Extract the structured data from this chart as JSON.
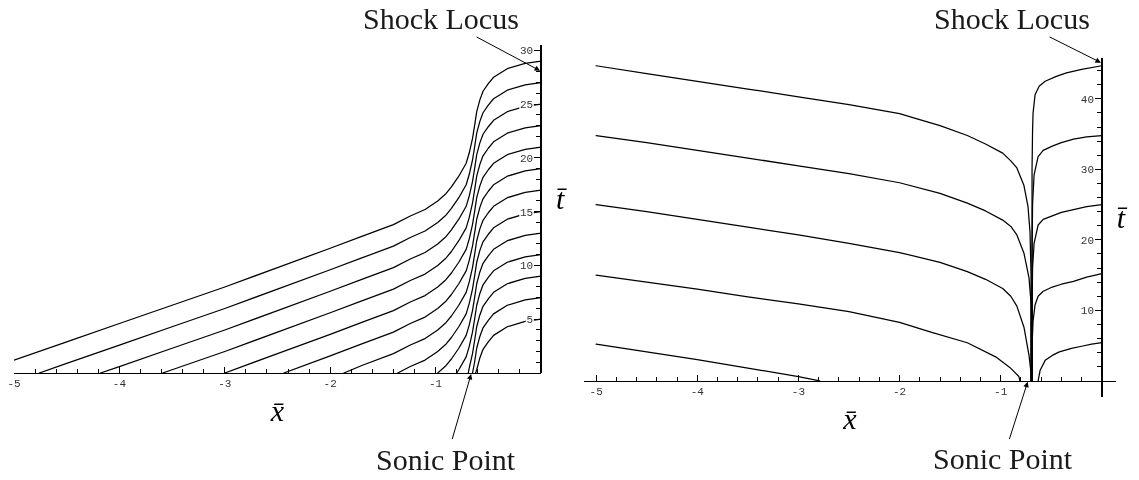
{
  "chart_data": [
    {
      "type": "line",
      "xlabel": "x̄",
      "ylabel": "t̄",
      "xlim": [
        -5,
        0
      ],
      "ylim": [
        0,
        30.5
      ],
      "xticks": [
        -5,
        {
          "value": -4.8,
          "label": null
        },
        {
          "value": -4.6,
          "label": null
        },
        {
          "value": -4.4,
          "label": null
        },
        {
          "value": -4.2,
          "label": null
        },
        -4,
        {
          "value": -3.8,
          "label": null
        },
        {
          "value": -3.6,
          "label": null
        },
        {
          "value": -3.4,
          "label": null
        },
        {
          "value": -3.2,
          "label": null
        },
        -3,
        {
          "value": -2.8,
          "label": null
        },
        {
          "value": -2.6,
          "label": null
        },
        {
          "value": -2.4,
          "label": null
        },
        {
          "value": -2.2,
          "label": null
        },
        -2,
        {
          "value": -1.8,
          "label": null
        },
        {
          "value": -1.6,
          "label": null
        },
        {
          "value": -1.4,
          "label": null
        },
        {
          "value": -1.2,
          "label": null
        },
        -1,
        {
          "value": -0.8,
          "label": null
        },
        {
          "value": -0.6,
          "label": null
        },
        {
          "value": -0.4,
          "label": null
        },
        {
          "value": -0.2,
          "label": null
        }
      ],
      "yticks": [
        {
          "value": 1,
          "label": null
        },
        {
          "value": 2,
          "label": null
        },
        {
          "value": 3,
          "label": null
        },
        {
          "value": 4,
          "label": null
        },
        5,
        {
          "value": 6,
          "label": null
        },
        {
          "value": 7,
          "label": null
        },
        {
          "value": 8,
          "label": null
        },
        {
          "value": 9,
          "label": null
        },
        10,
        {
          "value": 11,
          "label": null
        },
        {
          "value": 12,
          "label": null
        },
        {
          "value": 13,
          "label": null
        },
        {
          "value": 14,
          "label": null
        },
        15,
        {
          "value": 16,
          "label": null
        },
        {
          "value": 17,
          "label": null
        },
        {
          "value": 18,
          "label": null
        },
        {
          "value": 19,
          "label": null
        },
        20,
        {
          "value": 21,
          "label": null
        },
        {
          "value": 22,
          "label": null
        },
        {
          "value": 23,
          "label": null
        },
        {
          "value": 24,
          "label": null
        },
        25,
        {
          "value": 26,
          "label": null
        },
        {
          "value": 27,
          "label": null
        },
        {
          "value": 28,
          "label": null
        },
        {
          "value": 29,
          "label": null
        },
        30
      ],
      "series": [
        {
          "color": "#000000",
          "x": [
            -5,
            -4.5,
            -4,
            -3.5,
            -3,
            -2.5,
            -2,
            -1.7,
            -1.4,
            -1.24,
            -1.1,
            -0.98,
            -0.9,
            -0.85,
            -0.78,
            -0.71,
            -0.68,
            -0.65,
            -0.63,
            -0.61,
            -0.58,
            -0.55,
            -0.5,
            -0.45,
            -0.32,
            -0.15,
            0
          ],
          "values": [
            1.2,
            2.9,
            4.6,
            6.3,
            8.0,
            9.8,
            11.6,
            12.7,
            13.8,
            14.6,
            15.2,
            16.0,
            16.7,
            17.3,
            18.3,
            19.5,
            20.5,
            21.8,
            23.0,
            24.3,
            25.4,
            26.2,
            26.9,
            27.5,
            28.3,
            28.8,
            29.0
          ]
        },
        {
          "color": "#000000",
          "x": [
            -4.76,
            -4.5,
            -4,
            -3.5,
            -3,
            -2.5,
            -2,
            -1.7,
            -1.4,
            -1.24,
            -1.1,
            -0.98,
            -0.9,
            -0.85,
            -0.78,
            -0.71,
            -0.68,
            -0.65,
            -0.63,
            -0.61,
            -0.58,
            -0.55,
            -0.5,
            -0.45,
            -0.32,
            -0.15,
            0
          ],
          "values": [
            0,
            0.9,
            2.6,
            4.3,
            6.0,
            7.8,
            9.6,
            10.7,
            11.8,
            12.6,
            13.2,
            14.0,
            14.7,
            15.3,
            16.3,
            17.5,
            18.5,
            19.8,
            21.0,
            22.3,
            23.4,
            24.2,
            24.9,
            25.5,
            26.3,
            26.8,
            27.0
          ]
        },
        {
          "color": "#000000",
          "x": [
            -4.18,
            -4,
            -3.5,
            -3,
            -2.5,
            -2,
            -1.7,
            -1.4,
            -1.24,
            -1.1,
            -0.98,
            -0.9,
            -0.85,
            -0.78,
            -0.71,
            -0.68,
            -0.65,
            -0.63,
            -0.61,
            -0.58,
            -0.55,
            -0.5,
            -0.45,
            -0.32,
            -0.15,
            0
          ],
          "values": [
            0,
            0.6,
            2.3,
            4.0,
            5.8,
            7.6,
            8.7,
            9.8,
            10.6,
            11.2,
            12.0,
            12.7,
            13.3,
            14.3,
            15.5,
            16.5,
            17.8,
            19.0,
            20.3,
            21.4,
            22.2,
            22.9,
            23.5,
            24.3,
            24.8,
            25.0
          ]
        },
        {
          "color": "#000000",
          "x": [
            -3.59,
            -3.5,
            -3,
            -2.5,
            -2,
            -1.7,
            -1.4,
            -1.24,
            -1.1,
            -0.98,
            -0.9,
            -0.85,
            -0.78,
            -0.71,
            -0.68,
            -0.65,
            -0.63,
            -0.61,
            -0.58,
            -0.55,
            -0.5,
            -0.45,
            -0.32,
            -0.15,
            0
          ],
          "values": [
            0,
            0.3,
            2.0,
            3.8,
            5.6,
            6.7,
            7.8,
            8.6,
            9.2,
            10.0,
            10.7,
            11.3,
            12.3,
            13.5,
            14.5,
            15.8,
            17.0,
            18.3,
            19.4,
            20.2,
            20.9,
            21.5,
            22.3,
            22.8,
            23.0
          ]
        },
        {
          "color": "#000000",
          "x": [
            -3,
            -2.5,
            -2,
            -1.7,
            -1.4,
            -1.24,
            -1.1,
            -0.98,
            -0.9,
            -0.85,
            -0.78,
            -0.71,
            -0.68,
            -0.65,
            -0.63,
            -0.61,
            -0.58,
            -0.55,
            -0.5,
            -0.45,
            -0.32,
            -0.15,
            0
          ],
          "values": [
            0,
            1.8,
            3.6,
            4.7,
            5.8,
            6.6,
            7.2,
            8.0,
            8.7,
            9.3,
            10.3,
            11.5,
            12.5,
            13.8,
            15.0,
            16.3,
            17.4,
            18.2,
            18.9,
            19.5,
            20.3,
            20.8,
            21.0
          ]
        },
        {
          "color": "#000000",
          "x": [
            -2.44,
            -2,
            -1.7,
            -1.4,
            -1.24,
            -1.1,
            -0.98,
            -0.9,
            -0.85,
            -0.78,
            -0.71,
            -0.68,
            -0.65,
            -0.63,
            -0.61,
            -0.58,
            -0.55,
            -0.5,
            -0.45,
            -0.32,
            -0.15,
            0
          ],
          "values": [
            0,
            1.6,
            2.7,
            3.8,
            4.6,
            5.2,
            6.0,
            6.7,
            7.3,
            8.3,
            9.5,
            10.5,
            11.8,
            13.0,
            14.3,
            15.4,
            16.2,
            16.9,
            17.5,
            18.3,
            18.8,
            19.0
          ]
        },
        {
          "color": "#000000",
          "x": [
            -1.87,
            -1.7,
            -1.4,
            -1.24,
            -1.1,
            -0.98,
            -0.9,
            -0.85,
            -0.78,
            -0.71,
            -0.68,
            -0.65,
            -0.63,
            -0.61,
            -0.58,
            -0.55,
            -0.5,
            -0.45,
            -0.32,
            -0.15,
            0
          ],
          "values": [
            0,
            0.7,
            1.8,
            2.6,
            3.2,
            4.0,
            4.7,
            5.3,
            6.3,
            7.5,
            8.5,
            9.8,
            11.0,
            12.3,
            13.4,
            14.2,
            14.9,
            15.5,
            16.3,
            16.8,
            17.0
          ]
        },
        {
          "color": "#000000",
          "x": [
            -1.36,
            -1.24,
            -1.1,
            -0.98,
            -0.9,
            -0.85,
            -0.78,
            -0.71,
            -0.68,
            -0.65,
            -0.63,
            -0.61,
            -0.58,
            -0.55,
            -0.5,
            -0.45,
            -0.32,
            -0.15,
            0
          ],
          "values": [
            0,
            0.6,
            1.2,
            2.0,
            2.7,
            3.3,
            4.3,
            5.5,
            6.5,
            7.8,
            9.0,
            10.3,
            11.4,
            12.2,
            12.9,
            13.5,
            14.3,
            14.8,
            15.0
          ]
        },
        {
          "color": "#000000",
          "x": [
            -0.98,
            -0.9,
            -0.85,
            -0.78,
            -0.71,
            -0.68,
            -0.65,
            -0.63,
            -0.61,
            -0.58,
            -0.55,
            -0.5,
            -0.45,
            -0.32,
            -0.15,
            0
          ],
          "values": [
            0,
            0.7,
            1.3,
            2.3,
            3.5,
            4.5,
            5.8,
            7.0,
            8.3,
            9.4,
            10.2,
            10.9,
            11.5,
            12.3,
            12.8,
            13.0
          ]
        },
        {
          "color": "#000000",
          "x": [
            -0.8,
            -0.78,
            -0.71,
            -0.68,
            -0.65,
            -0.63,
            -0.61,
            -0.58,
            -0.55,
            -0.5,
            -0.45,
            -0.32,
            -0.15,
            0
          ],
          "values": [
            0,
            0.3,
            1.5,
            2.5,
            3.8,
            5.0,
            6.3,
            7.4,
            8.2,
            8.9,
            9.5,
            10.3,
            10.8,
            11.0
          ]
        },
        {
          "color": "#000000",
          "x": [
            -0.69,
            -0.68,
            -0.65,
            -0.63,
            -0.61,
            -0.58,
            -0.55,
            -0.5,
            -0.45,
            -0.32,
            -0.15,
            0
          ],
          "values": [
            0,
            0.5,
            1.8,
            3.0,
            4.3,
            5.4,
            6.2,
            6.9,
            7.5,
            8.3,
            8.8,
            9.0
          ]
        },
        {
          "color": "#000000",
          "x": [
            -0.65,
            -0.63,
            -0.61,
            -0.58,
            -0.55,
            -0.5,
            -0.45,
            -0.32,
            -0.15,
            0
          ],
          "values": [
            0,
            1.0,
            2.3,
            3.4,
            4.2,
            4.9,
            5.5,
            6.3,
            6.8,
            7.0
          ]
        },
        {
          "color": "#000000",
          "x": [
            -0.62,
            -0.61,
            -0.58,
            -0.55,
            -0.5,
            -0.45,
            -0.32,
            -0.15,
            0
          ],
          "values": [
            0,
            0.3,
            1.4,
            2.2,
            2.9,
            3.5,
            4.3,
            4.8,
            5.0
          ]
        }
      ],
      "annotations": [
        "Shock Locus",
        {
          "text": "Sonic Point",
          "x": -0.66,
          "y": 0
        }
      ]
    },
    {
      "type": "line",
      "xlabel": "x̄",
      "ylabel": "t̄",
      "xlim": [
        -5.12,
        0.14
      ],
      "ylim": [
        -2.3,
        45.8
      ],
      "xticks": [
        -5,
        {
          "value": -4.8,
          "label": null
        },
        {
          "value": -4.6,
          "label": null
        },
        {
          "value": -4.4,
          "label": null
        },
        {
          "value": -4.2,
          "label": null
        },
        -4,
        {
          "value": -3.8,
          "label": null
        },
        {
          "value": -3.6,
          "label": null
        },
        {
          "value": -3.4,
          "label": null
        },
        {
          "value": -3.2,
          "label": null
        },
        -3,
        {
          "value": -2.8,
          "label": null
        },
        {
          "value": -2.6,
          "label": null
        },
        {
          "value": -2.4,
          "label": null
        },
        {
          "value": -2.2,
          "label": null
        },
        -2,
        {
          "value": -1.8,
          "label": null
        },
        {
          "value": -1.6,
          "label": null
        },
        {
          "value": -1.4,
          "label": null
        },
        {
          "value": -1.2,
          "label": null
        },
        -1,
        {
          "value": -0.8,
          "label": null
        },
        {
          "value": -0.6,
          "label": null
        },
        {
          "value": -0.4,
          "label": null
        },
        {
          "value": -0.2,
          "label": null
        }
      ],
      "yticks": [
        {
          "value": 2,
          "label": null
        },
        {
          "value": 4,
          "label": null
        },
        {
          "value": 6,
          "label": null
        },
        {
          "value": 8,
          "label": null
        },
        10,
        {
          "value": 12,
          "label": null
        },
        {
          "value": 14,
          "label": null
        },
        {
          "value": 16,
          "label": null
        },
        {
          "value": 18,
          "label": null
        },
        20,
        {
          "value": 22,
          "label": null
        },
        {
          "value": 24,
          "label": null
        },
        {
          "value": 26,
          "label": null
        },
        {
          "value": 28,
          "label": null
        },
        30,
        {
          "value": 32,
          "label": null
        },
        {
          "value": 34,
          "label": null
        },
        {
          "value": 36,
          "label": null
        },
        {
          "value": 38,
          "label": null
        },
        40,
        {
          "value": 42,
          "label": null
        },
        {
          "value": 44,
          "label": null
        }
      ],
      "series": [
        {
          "color": "#000000",
          "x": [
            -5,
            -4.5,
            -4,
            -3.5,
            -3,
            -2.5,
            -2,
            -1.86,
            -1.6,
            -1.33,
            -1.15,
            -0.98,
            -0.9,
            -0.84,
            -0.77,
            -0.73,
            -0.71,
            -0.7,
            -0.7
          ],
          "values": [
            44.7,
            43.6,
            42.5,
            41.4,
            40.3,
            39.2,
            37.9,
            37.3,
            36.2,
            34.8,
            33.6,
            32.3,
            31.2,
            30.2,
            27.7,
            24.7,
            21.1,
            15.0,
            0
          ]
        },
        {
          "color": "#000000",
          "x": [
            -5,
            -4.5,
            -4,
            -3.5,
            -3,
            -2.5,
            -2,
            -1.6,
            -1.33,
            -1.15,
            -0.98,
            -0.9,
            -0.84,
            -0.77,
            -0.72,
            -0.7,
            -0.7
          ],
          "values": [
            34.8,
            33.8,
            32.7,
            31.6,
            30.5,
            29.4,
            28.1,
            26.6,
            25.2,
            24.1,
            22.8,
            21.9,
            20.7,
            18.1,
            14.6,
            11.0,
            0
          ]
        },
        {
          "color": "#000000",
          "x": [
            -5,
            -4.5,
            -4,
            -3.5,
            -3,
            -2.5,
            -2,
            -1.6,
            -1.33,
            -1.15,
            -0.98,
            -0.9,
            -0.84,
            -0.77,
            -0.72,
            -0.7,
            -0.7
          ],
          "values": [
            25.0,
            24.0,
            22.9,
            21.8,
            20.7,
            19.5,
            18.2,
            16.8,
            15.5,
            14.4,
            13.1,
            12.0,
            10.6,
            7.6,
            3.6,
            1.1,
            0
          ]
        },
        {
          "color": "#000000",
          "x": [
            -5,
            -4.5,
            -4,
            -3.5,
            -3,
            -2.5,
            -2,
            -1.69,
            -1.33,
            -1.05,
            -0.91,
            -0.82,
            -0.81
          ],
          "values": [
            15.0,
            14.0,
            13.0,
            11.9,
            10.9,
            9.8,
            8.3,
            6.9,
            5.4,
            3.4,
            1.9,
            0.6,
            0
          ]
        },
        {
          "color": "#000000",
          "x": [
            -5,
            -4.5,
            -4,
            -3.5,
            -3,
            -2.79
          ],
          "values": [
            5.2,
            4.1,
            3.0,
            1.8,
            0.6,
            0
          ]
        },
        {
          "color": "#000000",
          "x": [
            -0.69,
            -0.69,
            -0.685,
            -0.68,
            -0.66,
            -0.62,
            -0.56,
            -0.45,
            -0.35,
            -0.2,
            0
          ],
          "values": [
            0,
            30,
            35.5,
            38.0,
            40.6,
            41.8,
            42.5,
            43.2,
            43.7,
            44.2,
            44.7
          ]
        },
        {
          "color": "#000000",
          "x": [
            -0.69,
            -0.69,
            -0.685,
            -0.67,
            -0.63,
            -0.58,
            -0.49,
            -0.4,
            -0.28,
            -0.15,
            0
          ],
          "values": [
            0,
            18,
            25,
            29.2,
            31.8,
            32.7,
            33.3,
            33.8,
            34.3,
            34.6,
            34.8
          ]
        },
        {
          "color": "#000000",
          "x": [
            -0.69,
            -0.69,
            -0.685,
            -0.67,
            -0.63,
            -0.58,
            -0.49,
            -0.4,
            -0.28,
            -0.15,
            0
          ],
          "values": [
            0,
            10,
            16,
            19.5,
            22.1,
            22.9,
            23.4,
            23.9,
            24.3,
            24.7,
            25.0
          ]
        },
        {
          "color": "#000000",
          "x": [
            -0.69,
            -0.69,
            -0.68,
            -0.66,
            -0.63,
            -0.58,
            -0.49,
            -0.4,
            -0.28,
            -0.15,
            0
          ],
          "values": [
            0,
            5,
            8.5,
            10.8,
            12.0,
            12.7,
            13.3,
            13.7,
            14.1,
            14.7,
            15.2
          ]
        },
        {
          "color": "#000000",
          "x": [
            -0.63,
            -0.61,
            -0.56,
            -0.49,
            -0.42,
            -0.3,
            -0.2,
            -0.1,
            0
          ],
          "values": [
            0,
            1.5,
            2.9,
            3.6,
            4.1,
            4.6,
            4.9,
            5.2,
            5.4
          ]
        }
      ],
      "annotations": [
        "Shock Locus",
        {
          "text": "Sonic Point",
          "x": -0.73,
          "y": 0
        }
      ]
    }
  ]
}
